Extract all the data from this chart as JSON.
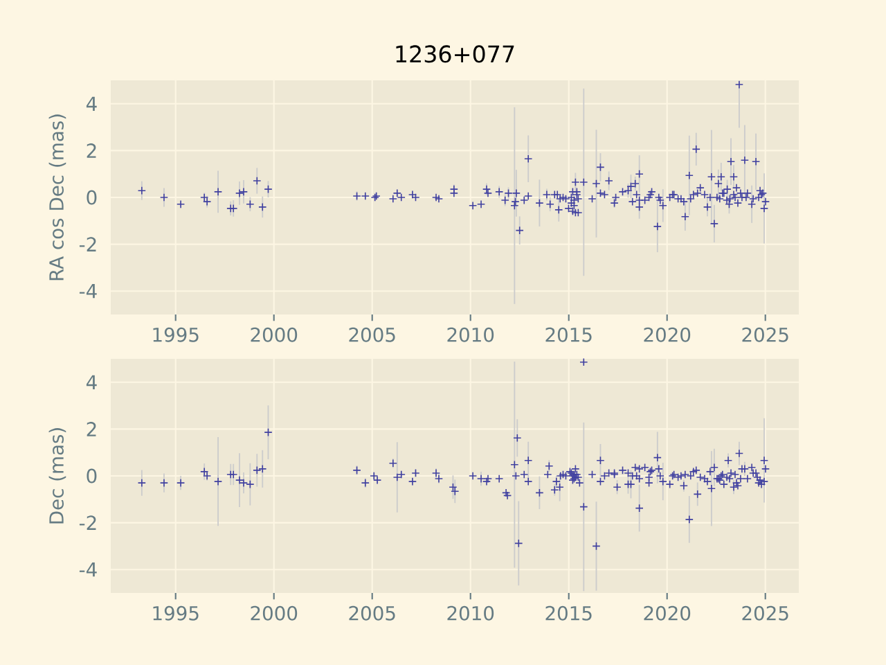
{
  "chart_data": [
    {
      "type": "scatter",
      "title": "1236+077",
      "ylabel": "RA cos Dec (mas)",
      "marker": "cross",
      "color": "#4040a0",
      "grid": true,
      "xlim": [
        1991.7,
        2026.7
      ],
      "ylim": [
        -5,
        5
      ],
      "xticks": [
        1995,
        2000,
        2005,
        2010,
        2015,
        2020,
        2025
      ],
      "yticks": [
        -4,
        -2,
        0,
        2,
        4
      ],
      "x": [
        1993.28,
        1994.41,
        1995.26,
        1996.46,
        1996.6,
        1997.16,
        1997.8,
        1997.94,
        1998.25,
        1998.46,
        1998.79,
        1999.14,
        1999.42,
        1999.71,
        2004.22,
        2004.65,
        2005.14,
        2005.21,
        2006.06,
        2006.27,
        2006.48,
        2007.05,
        2007.21,
        2008.25,
        2008.39,
        2009.16,
        2009.16,
        2010.12,
        2010.54,
        2010.82,
        2010.89,
        2011.46,
        2011.76,
        2011.93,
        2012.24,
        2012.28,
        2012.33,
        2012.5,
        2012.73,
        2012.94,
        2012.94,
        2013.51,
        2013.88,
        2014.05,
        2014.28,
        2014.42,
        2014.49,
        2014.56,
        2014.71,
        2014.85,
        2014.99,
        2015.13,
        2015.2,
        2015.27,
        2015.34,
        2015.41,
        2015.48,
        2015.2,
        2015.34,
        2015.48,
        2015.13,
        2015.27,
        2015.41,
        2015.76,
        2016.19,
        2016.4,
        2016.61,
        2016.61,
        2016.82,
        2017.04,
        2017.32,
        2017.39,
        2017.74,
        2018.02,
        2018.16,
        2018.24,
        2018.38,
        2018.45,
        2018.59,
        2018.59,
        2018.59,
        2018.87,
        2019.08,
        2019.15,
        2019.22,
        2019.51,
        2019.58,
        2019.65,
        2019.79,
        2020.14,
        2020.28,
        2020.35,
        2020.56,
        2020.71,
        2020.85,
        2020.92,
        2021.13,
        2021.2,
        2021.34,
        2021.48,
        2021.55,
        2021.69,
        2021.91,
        2022.05,
        2022.19,
        2022.26,
        2022.4,
        2022.54,
        2022.61,
        2022.68,
        2022.75,
        2022.82,
        2022.89,
        2023.04,
        2023.06,
        2023.16,
        2023.2,
        2023.25,
        2023.39,
        2023.39,
        2023.46,
        2023.53,
        2023.6,
        2023.67,
        2023.74,
        2023.81,
        2023.95,
        2024.02,
        2024.09,
        2024.31,
        2024.38,
        2024.52,
        2024.66,
        2024.73,
        2024.8,
        2024.87,
        2024.94,
        2025.01
      ],
      "values": [
        0.29,
        0.0,
        -0.29,
        0.0,
        -0.18,
        0.24,
        -0.47,
        -0.47,
        0.18,
        0.24,
        -0.29,
        0.71,
        -0.41,
        0.35,
        0.06,
        0.06,
        0.0,
        0.06,
        -0.06,
        0.18,
        0.0,
        0.12,
        0.0,
        0.0,
        -0.06,
        0.35,
        0.18,
        -0.35,
        -0.29,
        0.35,
        0.18,
        0.24,
        -0.12,
        0.18,
        -0.35,
        -0.18,
        0.18,
        -1.41,
        -0.12,
        0.06,
        1.65,
        -0.24,
        0.12,
        -0.29,
        0.12,
        0.12,
        -0.53,
        -0.06,
        0.0,
        -0.06,
        -0.47,
        0.0,
        0.24,
        -0.12,
        0.65,
        0.12,
        -0.06,
        -0.59,
        -0.65,
        -0.65,
        -0.24,
        -0.35,
        0.24,
        0.65,
        -0.06,
        0.59,
        1.29,
        0.18,
        0.12,
        0.71,
        -0.24,
        0.0,
        0.24,
        0.29,
        0.47,
        -0.18,
        0.59,
        0.12,
        1.0,
        -0.41,
        -0.12,
        -0.12,
        0.0,
        0.12,
        0.24,
        -1.24,
        0.0,
        -0.12,
        -0.35,
        0.0,
        0.12,
        0.12,
        -0.06,
        -0.06,
        -0.18,
        -0.82,
        0.94,
        -0.06,
        0.12,
        2.06,
        0.18,
        0.41,
        0.12,
        -0.41,
        0.0,
        0.88,
        -1.12,
        0.0,
        0.59,
        -0.06,
        0.88,
        0.18,
        0.18,
        -0.12,
        0.35,
        -0.29,
        -0.06,
        1.53,
        0.88,
        0.12,
        0.0,
        0.41,
        -0.24,
        4.82,
        0.18,
        0.0,
        1.59,
        0.0,
        0.18,
        -0.29,
        -0.06,
        1.53,
        0.0,
        0.29,
        0.12,
        0.18,
        -0.47,
        -0.18
      ],
      "errors": [
        0.4,
        0.4,
        0.1,
        0.2,
        0.25,
        0.9,
        0.3,
        0.35,
        0.5,
        0.5,
        0.3,
        0.55,
        0.45,
        0.35,
        0.2,
        0.1,
        0.15,
        0.15,
        null,
        0.15,
        null,
        0.15,
        null,
        null,
        null,
        0.2,
        null,
        null,
        null,
        0.25,
        null,
        0.25,
        0.25,
        0.25,
        4.2,
        null,
        1.0,
        0.6,
        null,
        null,
        1.0,
        1.0,
        0.25,
        0.3,
        null,
        null,
        0.5,
        null,
        null,
        null,
        null,
        null,
        null,
        null,
        0.4,
        null,
        null,
        null,
        null,
        null,
        null,
        null,
        null,
        4.0,
        null,
        2.3,
        0.6,
        null,
        null,
        0.4,
        0.2,
        null,
        null,
        0.3,
        0.5,
        null,
        0.3,
        null,
        0.8,
        0.5,
        null,
        null,
        null,
        null,
        null,
        1.1,
        null,
        null,
        0.7,
        null,
        null,
        null,
        null,
        null,
        null,
        0.6,
        1.7,
        null,
        null,
        0.7,
        null,
        null,
        null,
        0.4,
        null,
        2.0,
        0.8,
        null,
        0.6,
        null,
        0.6,
        null,
        null,
        null,
        0.4,
        0.4,
        null,
        1.0,
        0.5,
        null,
        null,
        null,
        null,
        [
          2.97,
          4.94
        ],
        null,
        null,
        1.5,
        null,
        null,
        0.8,
        null,
        1.2,
        null,
        null,
        null,
        null,
        1.5,
        null
      ]
    },
    {
      "type": "scatter",
      "ylabel": "Dec (mas)",
      "marker": "cross",
      "color": "#4040a0",
      "grid": true,
      "xlim": [
        1991.7,
        2026.7
      ],
      "ylim": [
        -5,
        5
      ],
      "xticks": [
        1995,
        2000,
        2005,
        2010,
        2015,
        2020,
        2025
      ],
      "yticks": [
        -4,
        -2,
        0,
        2,
        4
      ],
      "x": [
        1993.28,
        1994.41,
        1995.26,
        1996.46,
        1996.6,
        1997.16,
        1997.8,
        1997.94,
        1998.25,
        1998.46,
        1998.79,
        1999.14,
        1999.42,
        1999.71,
        2004.22,
        2004.65,
        2005.09,
        2005.26,
        2006.06,
        2006.27,
        2006.48,
        2007.05,
        2007.21,
        2008.25,
        2008.39,
        2009.11,
        2009.21,
        2010.12,
        2010.54,
        2010.82,
        2010.89,
        2011.46,
        2011.81,
        2011.88,
        2012.24,
        2012.31,
        2012.38,
        2012.45,
        2012.73,
        2012.94,
        2012.94,
        2013.51,
        2013.93,
        2014.0,
        2014.28,
        2014.37,
        2014.54,
        2014.58,
        2014.71,
        2014.85,
        2015.06,
        2015.13,
        2015.2,
        2015.27,
        2015.34,
        2015.41,
        2015.48,
        2015.27,
        2015.2,
        2015.34,
        2015.55,
        2015.76,
        2015.76,
        2016.19,
        2016.4,
        2016.61,
        2016.61,
        2016.82,
        2017.04,
        2017.32,
        2017.32,
        2017.46,
        2017.74,
        2018.02,
        2018.02,
        2018.16,
        2018.24,
        2018.38,
        2018.45,
        2018.59,
        2018.59,
        2018.59,
        2018.87,
        2019.08,
        2019.08,
        2019.15,
        2019.22,
        2019.51,
        2019.58,
        2019.65,
        2019.79,
        2020.14,
        2020.28,
        2020.35,
        2020.56,
        2020.71,
        2020.85,
        2020.92,
        2021.13,
        2021.2,
        2021.34,
        2021.48,
        2021.55,
        2021.69,
        2021.91,
        2022.05,
        2022.19,
        2022.26,
        2022.4,
        2022.54,
        2022.61,
        2022.68,
        2022.75,
        2022.82,
        2022.89,
        2023.04,
        2023.11,
        2023.18,
        2023.25,
        2023.39,
        2023.46,
        2023.53,
        2023.6,
        2023.67,
        2023.74,
        2023.81,
        2023.95,
        2024.09,
        2024.31,
        2024.38,
        2024.52,
        2024.59,
        2024.66,
        2024.73,
        2024.8,
        2024.94,
        2025.01,
        2024.94
      ],
      "values": [
        -0.3,
        -0.3,
        -0.3,
        0.18,
        0.0,
        -0.24,
        0.06,
        0.06,
        -0.18,
        -0.3,
        -0.36,
        0.24,
        0.3,
        1.86,
        0.24,
        -0.3,
        0.0,
        -0.18,
        0.54,
        -0.06,
        0.06,
        -0.24,
        0.12,
        0.12,
        -0.12,
        -0.48,
        -0.66,
        0.0,
        -0.12,
        -0.24,
        -0.12,
        -0.12,
        -0.72,
        -0.84,
        0.48,
        0.0,
        1.62,
        -2.88,
        0.06,
        0.66,
        -0.24,
        -0.72,
        0.06,
        0.42,
        -0.6,
        -0.24,
        -0.48,
        0.0,
        0.06,
        0.0,
        0.18,
        0.12,
        0.0,
        0.06,
        0.3,
        0.06,
        -0.06,
        -0.12,
        -0.18,
        -0.06,
        -0.3,
        4.86,
        -1.32,
        0.06,
        -3.0,
        0.66,
        -0.24,
        0.0,
        0.12,
        0.12,
        0.06,
        -0.48,
        0.24,
        0.12,
        -0.36,
        -0.36,
        0.0,
        0.36,
        0.0,
        0.3,
        -0.12,
        -1.38,
        0.36,
        -0.06,
        -0.3,
        0.18,
        0.24,
        0.78,
        0.3,
        0.0,
        -0.24,
        -0.36,
        0.0,
        0.06,
        -0.06,
        0.0,
        -0.42,
        0.06,
        -1.86,
        0.0,
        0.18,
        0.24,
        -0.78,
        -0.06,
        -0.12,
        -0.24,
        0.18,
        -0.54,
        0.36,
        -0.12,
        -0.12,
        -0.18,
        0.0,
        0.06,
        -0.36,
        -0.06,
        0.66,
        -0.12,
        0.12,
        -0.48,
        0.06,
        -0.3,
        -0.42,
        0.96,
        -0.12,
        0.3,
        0.3,
        -0.12,
        0.36,
        0.12,
        0.12,
        -0.06,
        -0.3,
        -0.18,
        -0.36,
        0.66,
        0.3,
        -0.24
      ],
      "errors": [
        0.55,
        0.4,
        0.3,
        0.35,
        0.2,
        1.9,
        0.45,
        0.45,
        1.15,
        0.45,
        0.9,
        0.7,
        0.8,
        1.15,
        0.2,
        0.2,
        0.15,
        0.15,
        0.2,
        1.5,
        0.15,
        0.15,
        0.15,
        0.2,
        0.2,
        0.5,
        0.5,
        null,
        0.3,
        null,
        null,
        null,
        null,
        null,
        4.4,
        null,
        0.8,
        1.8,
        null,
        0.8,
        null,
        0.7,
        null,
        0.25,
        0.25,
        0.25,
        0.6,
        null,
        null,
        null,
        null,
        null,
        null,
        null,
        null,
        null,
        null,
        null,
        null,
        null,
        null,
        0.1,
        3.6,
        null,
        1.9,
        0.7,
        null,
        null,
        null,
        null,
        null,
        0.3,
        null,
        null,
        0.4,
        0.6,
        null,
        null,
        null,
        null,
        null,
        1.0,
        null,
        null,
        null,
        null,
        null,
        1.1,
        null,
        null,
        0.8,
        null,
        null,
        null,
        null,
        null,
        0.25,
        null,
        1.0,
        null,
        null,
        null,
        0.5,
        null,
        null,
        null,
        null,
        1.6,
        0.8,
        null,
        null,
        null,
        null,
        null,
        null,
        null,
        0.3,
        null,
        null,
        0.3,
        null,
        null,
        null,
        0.5,
        null,
        null,
        0.3,
        null,
        null,
        null,
        null,
        null,
        null,
        null,
        null,
        1.8,
        null,
        null
      ]
    }
  ]
}
